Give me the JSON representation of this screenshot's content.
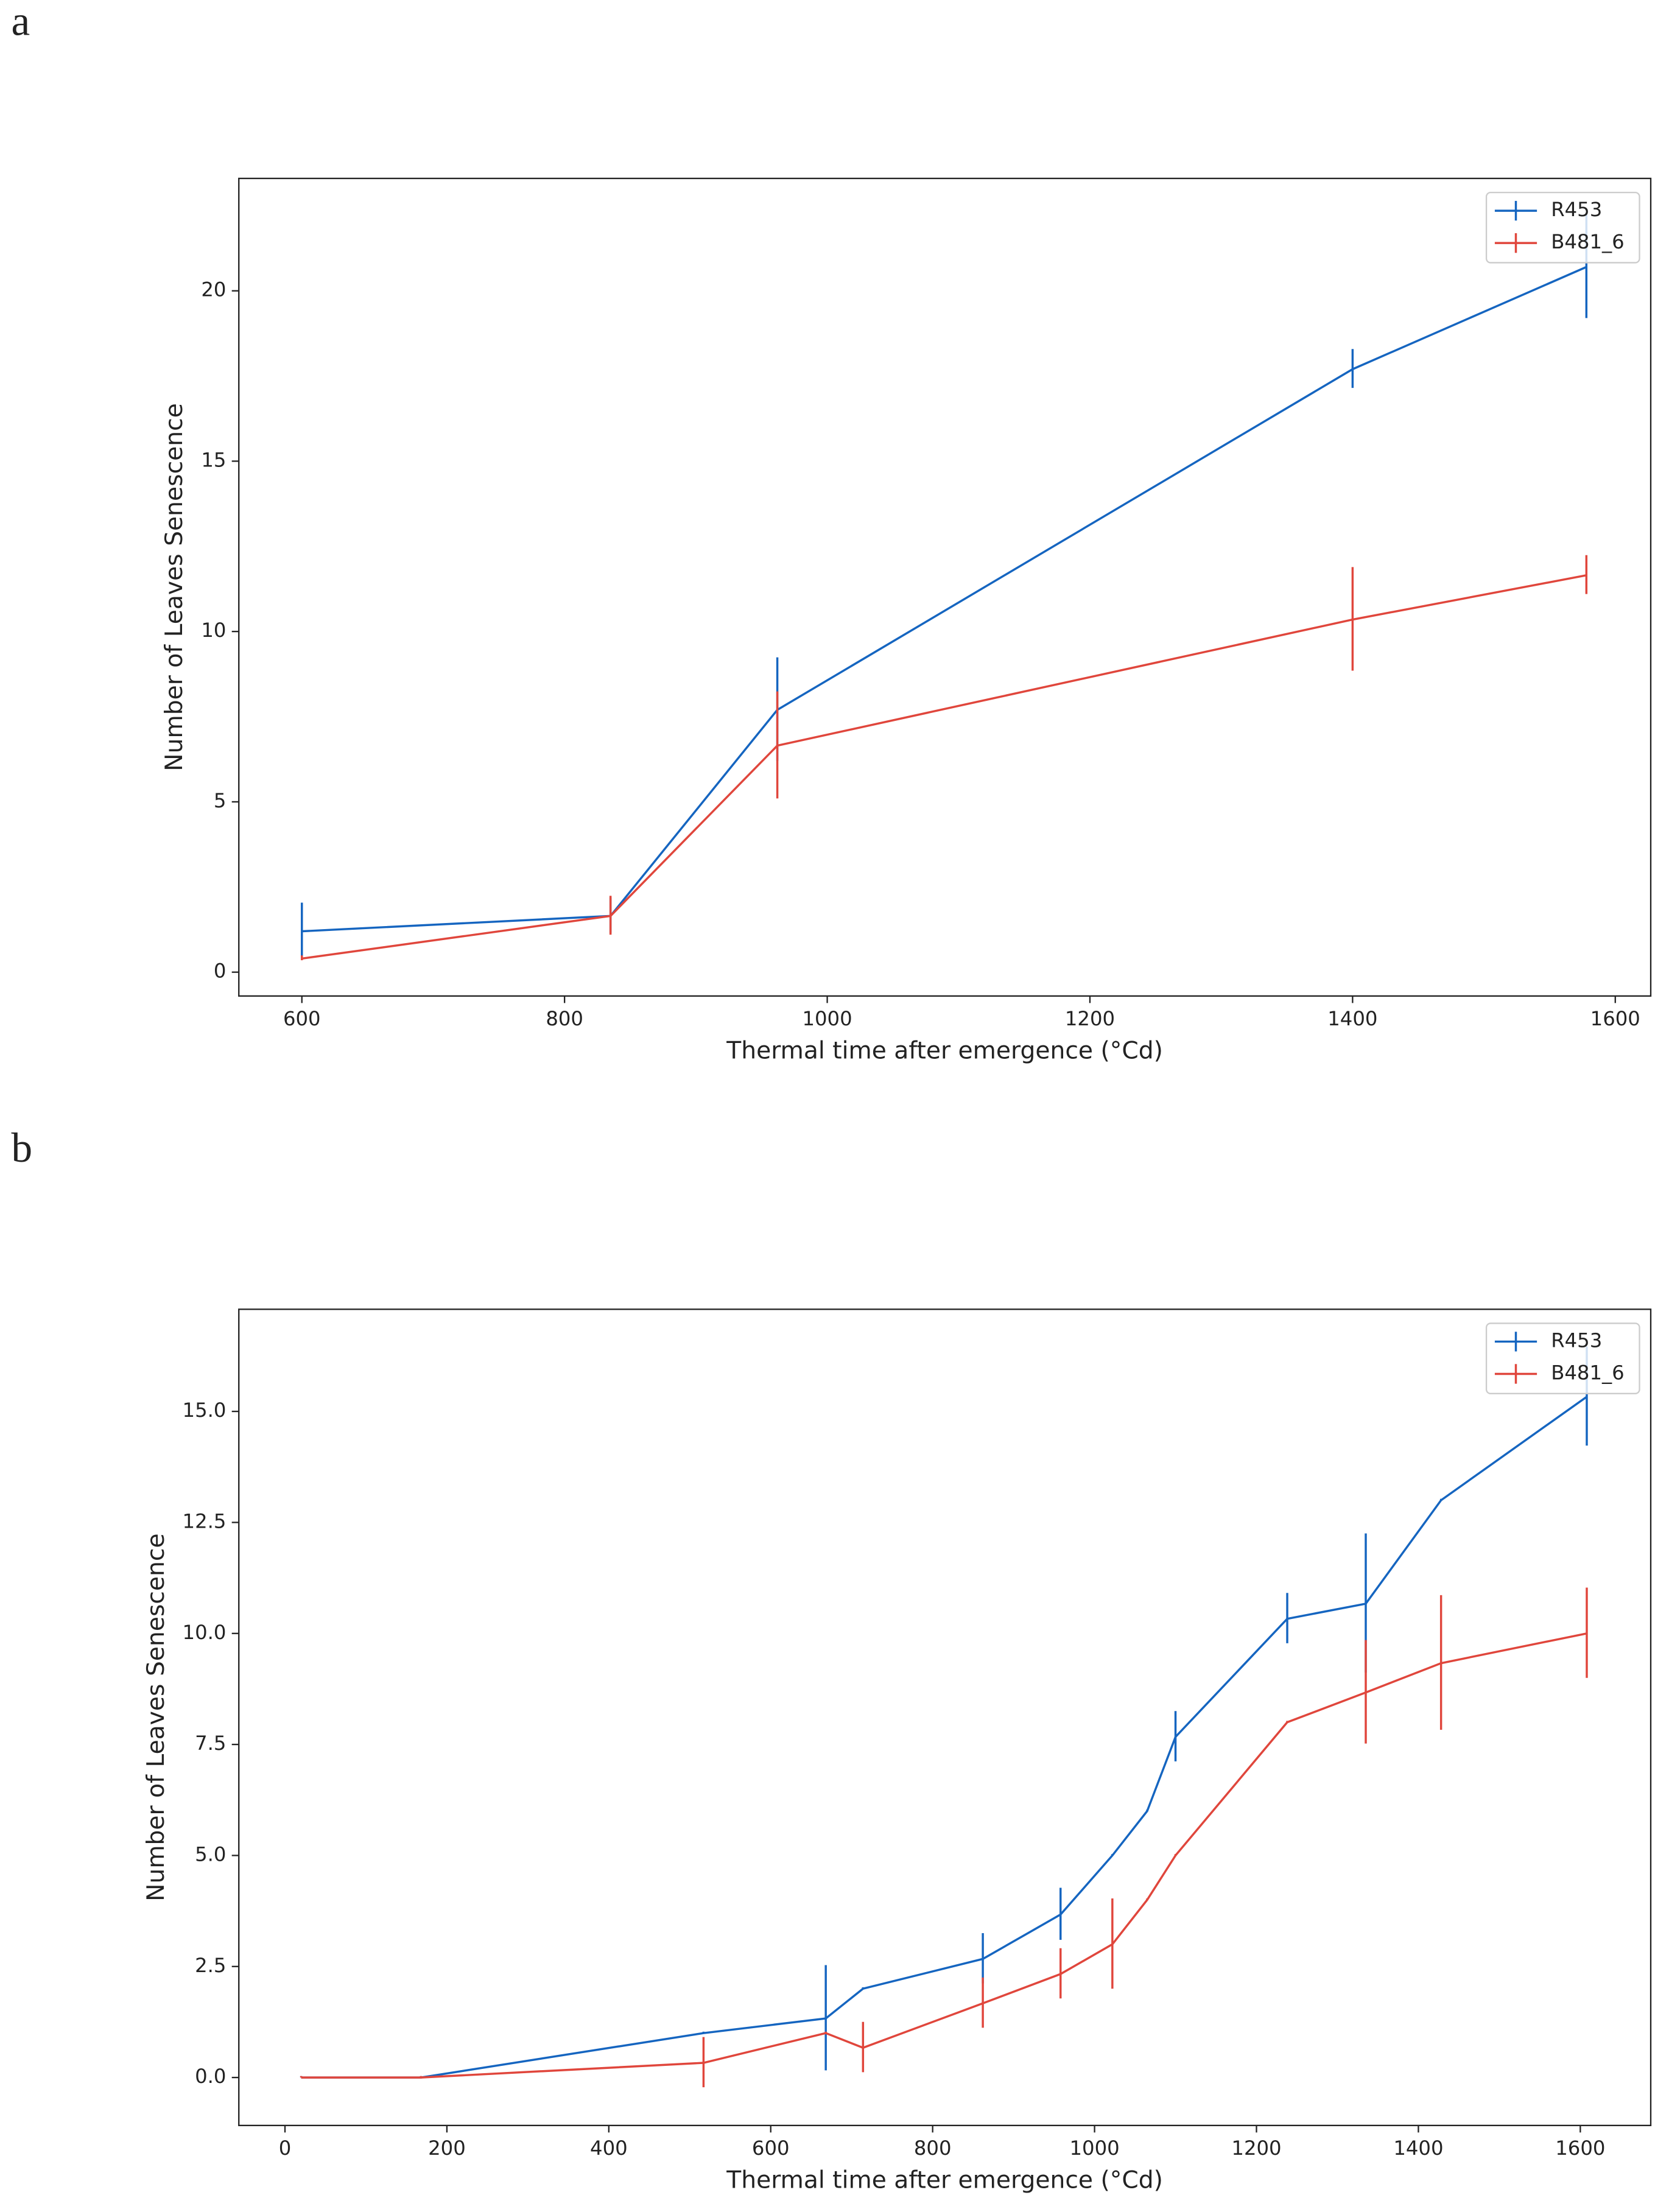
{
  "chart_data": [
    {
      "type": "line",
      "panel_label": "a",
      "x_label": "Thermal time after emergence (°Cd)",
      "y_label": "Number of Leaves Senescence",
      "x": [
        600,
        835,
        962,
        1400,
        1578
      ],
      "series": [
        {
          "name": "R453",
          "color": "#1565c0",
          "values": [
            1.2,
            1.65,
            7.7,
            17.7,
            20.7
          ],
          "errors": [
            0.8,
            0.5,
            1.5,
            0.55,
            1.5
          ]
        },
        {
          "name": "B481_6",
          "color": "#e0463c",
          "values": [
            0.4,
            1.65,
            6.65,
            10.35,
            11.65
          ],
          "errors": [
            0.05,
            0.55,
            1.55,
            1.5,
            0.55
          ]
        }
      ],
      "xlim": [
        552,
        1627
      ],
      "ylim": [
        -0.7,
        23.3
      ],
      "xticks": [
        600,
        800,
        1000,
        1200,
        1400,
        1600
      ],
      "yticks": [
        0,
        5,
        10,
        15,
        20
      ],
      "legend": "upper right"
    },
    {
      "type": "line",
      "panel_label": "b",
      "x_label": "Thermal time after emergence (°Cd)",
      "y_label": "Number of Leaves Senescence",
      "x": [
        20,
        168,
        517,
        668,
        714,
        862,
        958,
        1022,
        1065,
        1100,
        1238,
        1335,
        1428,
        1608
      ],
      "series": [
        {
          "name": "R453",
          "color": "#1565c0",
          "values": [
            0,
            0,
            1,
            1.33,
            2,
            2.67,
            3.67,
            5,
            6,
            7.67,
            10.33,
            10.67,
            13,
            15.33
          ],
          "errors": [
            0,
            0,
            0,
            1.17,
            0,
            0.55,
            0.57,
            0,
            0,
            0.55,
            0.55,
            1.55,
            0,
            1.1
          ]
        },
        {
          "name": "B481_6",
          "color": "#e0463c",
          "values": [
            0,
            0,
            0.33,
            1,
            0.67,
            1.67,
            2.33,
            3,
            4,
            5,
            8,
            8.67,
            9.33,
            10
          ],
          "errors": [
            0,
            0,
            0.55,
            0,
            0.55,
            0.55,
            0.55,
            1,
            0,
            0,
            0,
            1.15,
            1.5,
            1
          ]
        }
      ],
      "xlim": [
        -57,
        1687
      ],
      "ylim": [
        -1.08,
        17.3
      ],
      "xticks": [
        0,
        200,
        400,
        600,
        800,
        1000,
        1200,
        1400,
        1600
      ],
      "yticks": [
        {
          "value": 0,
          "label": "0.0"
        },
        {
          "value": 2.5,
          "label": "2.5"
        },
        {
          "value": 5,
          "label": "5.0"
        },
        {
          "value": 7.5,
          "label": "7.5"
        },
        {
          "value": 10,
          "label": "10.0"
        },
        {
          "value": 12.5,
          "label": "12.5"
        },
        {
          "value": 15,
          "label": "15.0"
        }
      ],
      "legend": "upper right"
    }
  ]
}
